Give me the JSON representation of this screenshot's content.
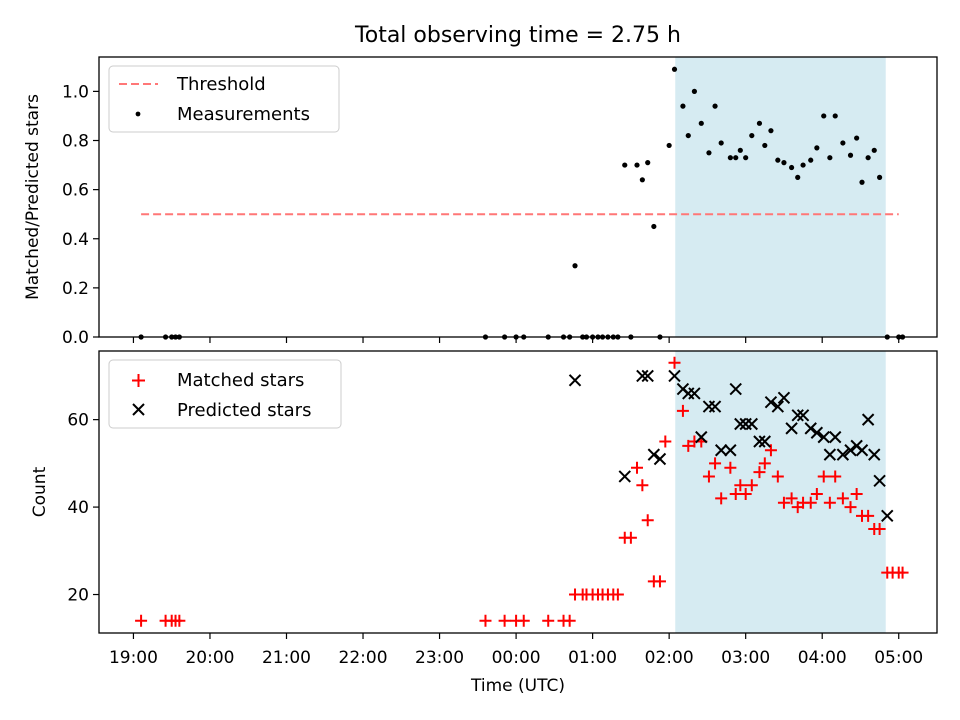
{
  "chart_data": {
    "title": "Total observing time = 2.75 h",
    "xlabel": "Time (UTC)",
    "x_unit": "hours UTC (values past 24 are after midnight)",
    "xlim": [
      18.55,
      29.5
    ],
    "x_ticks": [
      {
        "value": 19,
        "label": "19:00"
      },
      {
        "value": 20,
        "label": "20:00"
      },
      {
        "value": 21,
        "label": "21:00"
      },
      {
        "value": 22,
        "label": "22:00"
      },
      {
        "value": 23,
        "label": "23:00"
      },
      {
        "value": 24,
        "label": "00:00"
      },
      {
        "value": 25,
        "label": "01:00"
      },
      {
        "value": 26,
        "label": "02:00"
      },
      {
        "value": 27,
        "label": "03:00"
      },
      {
        "value": 28,
        "label": "04:00"
      },
      {
        "value": 29,
        "label": "05:00"
      }
    ],
    "highlight_span": {
      "x0": 26.08,
      "x1": 28.83,
      "color": "#add8e6",
      "opacity": 0.5
    },
    "panels": [
      {
        "type": "scatter",
        "ylabel": "Matched/Predicted stars",
        "ylim": [
          0,
          1.14
        ],
        "y_ticks": [
          "0.0",
          "0.2",
          "0.4",
          "0.6",
          "0.8",
          "1.0"
        ],
        "legend": {
          "placement": "top-left",
          "entries": [
            {
              "label": "Threshold",
              "style": "dashed-line",
              "color": "#ff7777"
            },
            {
              "label": "Measurements",
              "style": "dot",
              "color": "#000000"
            }
          ]
        },
        "threshold": {
          "name": "Threshold",
          "y": 0.5,
          "x0": 19.1,
          "x1": 29.0,
          "color": "#ff7777"
        },
        "series": [
          {
            "name": "Measurements",
            "marker": "dot",
            "color": "#000000",
            "x": [
              19.1,
              19.42,
              19.5,
              19.55,
              19.6,
              23.6,
              23.85,
              24.0,
              24.1,
              24.42,
              24.62,
              24.7,
              24.77,
              24.87,
              24.92,
              25.0,
              25.07,
              25.13,
              25.2,
              25.27,
              25.33,
              25.42,
              25.5,
              25.58,
              25.65,
              25.72,
              25.8,
              25.88,
              26.0,
              26.07,
              26.18,
              26.25,
              26.33,
              26.42,
              26.52,
              26.6,
              26.68,
              26.8,
              26.87,
              26.93,
              27.0,
              27.08,
              27.18,
              27.25,
              27.33,
              27.42,
              27.5,
              27.6,
              27.68,
              27.75,
              27.85,
              27.93,
              28.02,
              28.1,
              28.17,
              28.27,
              28.37,
              28.45,
              28.52,
              28.6,
              28.68,
              28.75,
              28.85,
              29.0,
              29.05
            ],
            "y": [
              0,
              0,
              0,
              0,
              0,
              0,
              0,
              0,
              0,
              0,
              0,
              0,
              0.29,
              0,
              0,
              0,
              0,
              0,
              0,
              0,
              0,
              0.7,
              0,
              0.7,
              0.64,
              0.71,
              0.45,
              0,
              0.78,
              1.09,
              0.94,
              0.82,
              1.0,
              0.87,
              0.75,
              0.94,
              0.79,
              0.73,
              0.73,
              0.76,
              0.73,
              0.82,
              0.87,
              0.78,
              0.84,
              0.72,
              0.71,
              0.69,
              0.65,
              0.7,
              0.72,
              0.77,
              0.9,
              0.73,
              0.9,
              0.79,
              0.74,
              0.81,
              0.63,
              0.73,
              0.76,
              0.65,
              0,
              0,
              0
            ]
          }
        ]
      },
      {
        "type": "scatter",
        "ylabel": "Count",
        "ylim": [
          11.2,
          75.7
        ],
        "y_ticks": [
          "20",
          "40",
          "60"
        ],
        "legend": {
          "placement": "top-left",
          "entries": [
            {
              "label": "Matched stars",
              "style": "plus",
              "color": "#ff0000"
            },
            {
              "label": "Predicted stars",
              "style": "x",
              "color": "#000000"
            }
          ]
        },
        "series": [
          {
            "name": "Matched stars",
            "marker": "plus",
            "color": "#ff0000",
            "x": [
              19.1,
              19.42,
              19.5,
              19.55,
              19.6,
              23.6,
              23.85,
              24.0,
              24.1,
              24.42,
              24.62,
              24.7,
              24.77,
              24.87,
              24.92,
              25.0,
              25.07,
              25.13,
              25.2,
              25.27,
              25.33,
              25.42,
              25.5,
              25.58,
              25.65,
              25.72,
              25.8,
              25.88,
              25.95,
              26.07,
              26.18,
              26.25,
              26.33,
              26.42,
              26.52,
              26.6,
              26.68,
              26.8,
              26.87,
              26.93,
              27.0,
              27.08,
              27.18,
              27.25,
              27.33,
              27.42,
              27.5,
              27.6,
              27.68,
              27.75,
              27.85,
              27.93,
              28.02,
              28.1,
              28.17,
              28.27,
              28.37,
              28.45,
              28.52,
              28.6,
              28.68,
              28.75,
              28.85,
              28.92,
              29.0,
              29.05
            ],
            "y": [
              14,
              14,
              14,
              14,
              14,
              14,
              14,
              14,
              14,
              14,
              14,
              14,
              20,
              20,
              20,
              20,
              20,
              20,
              20,
              20,
              20,
              33,
              33,
              49,
              45,
              37,
              23,
              23,
              55,
              73,
              62,
              54,
              55,
              55,
              47,
              50,
              42,
              49,
              43,
              45,
              43,
              45,
              48,
              50,
              53,
              47,
              41,
              42,
              40,
              41,
              41,
              43,
              47,
              41,
              47,
              42,
              40,
              43,
              38,
              38,
              35,
              35,
              25,
              25,
              25,
              25
            ]
          },
          {
            "name": "Predicted stars",
            "marker": "x",
            "color": "#000000",
            "x": [
              24.77,
              25.42,
              25.65,
              25.72,
              25.8,
              25.88,
              26.07,
              26.18,
              26.25,
              26.33,
              26.42,
              26.52,
              26.6,
              26.68,
              26.8,
              26.87,
              26.93,
              27.0,
              27.08,
              27.18,
              27.25,
              27.33,
              27.42,
              27.5,
              27.6,
              27.68,
              27.75,
              27.85,
              27.93,
              28.02,
              28.1,
              28.17,
              28.27,
              28.37,
              28.45,
              28.52,
              28.6,
              28.68,
              28.75,
              28.85
            ],
            "y": [
              69,
              47,
              70,
              70,
              52,
              51,
              70,
              67,
              66,
              66,
              56,
              63,
              63,
              53,
              53,
              67,
              59,
              59,
              59,
              55,
              55,
              64,
              63,
              65,
              58,
              61,
              61,
              58,
              57,
              56,
              52,
              56,
              52,
              53,
              54,
              53,
              60,
              52,
              46,
              38
            ]
          }
        ]
      }
    ]
  }
}
